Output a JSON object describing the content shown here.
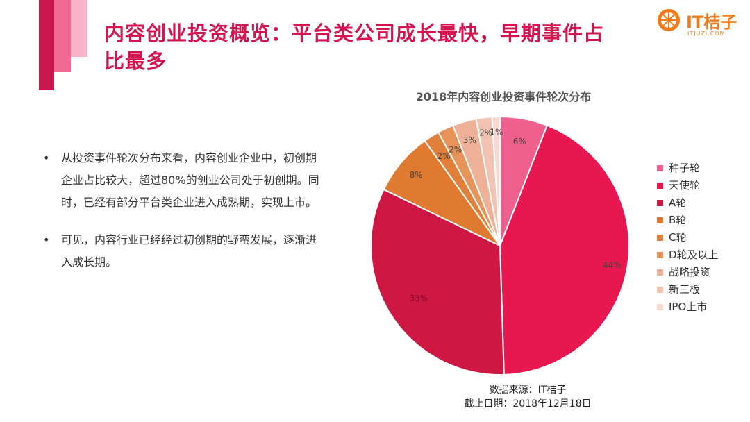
{
  "slide": {
    "title": "内容创业投资概览：平台类公司成长最快，早期事件占比最多"
  },
  "logo": {
    "name": "IT桔子",
    "sub": "ITJUZI.COM"
  },
  "bullets": [
    "从投资事件轮次分布来看，内容创业企业中，初创期企业占比较大，超过80%的创业公司处于初创期。同时，已经有部分平台类企业进入成熟期，实现上市。",
    "可见，内容行业已经经过初创期的野蛮发展，逐渐进入成长期。"
  ],
  "bullet_marker": "•",
  "chart_data": {
    "type": "pie",
    "title": "2018年内容创业投资事件轮次分布",
    "categories": [
      "种子轮",
      "天使轮",
      "A轮",
      "B轮",
      "C轮",
      "D轮及以上",
      "战略投资",
      "新三板",
      "IPO上市"
    ],
    "values": [
      6,
      44,
      33,
      8,
      2,
      2,
      3,
      2,
      1
    ],
    "labels": [
      "6%",
      "44%",
      "33%",
      "8%",
      "2%",
      "2%",
      "3%",
      "2%",
      "1%"
    ],
    "colors": [
      "#f0608f",
      "#e8174f",
      "#cf1743",
      "#df7a30",
      "#e0803a",
      "#e8935a",
      "#eeb096",
      "#f2c2b3",
      "#f7d8cf"
    ],
    "legend_position": "right"
  },
  "source": {
    "line1": "数据来源：IT桔子",
    "line2": "截止日期：2018年12月18日"
  }
}
